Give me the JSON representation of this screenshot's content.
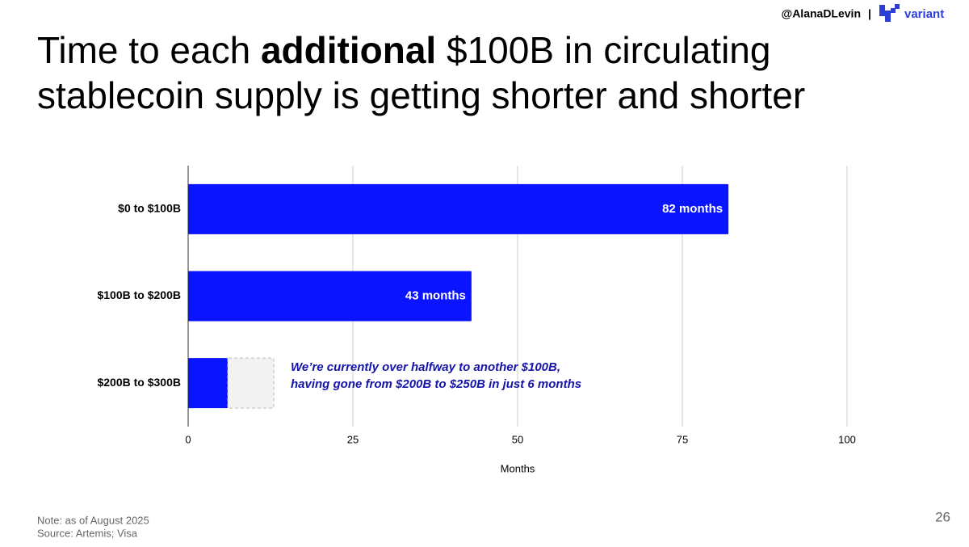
{
  "header": {
    "handle": "@AlanaDLevin",
    "separator": "|",
    "brand": "variant"
  },
  "chart_data": {
    "type": "hbar",
    "title": [
      "Time to each ",
      "additional",
      " $100B in circulating",
      "stablecoin supply is getting shorter and shorter"
    ],
    "categories": [
      "$0 to $100B",
      "$100B to $200B",
      "$200B to $300B"
    ],
    "series": [
      {
        "color": "#0a14ff",
        "values": [
          82,
          43,
          6
        ],
        "value_labels": [
          "82 months",
          "43 months",
          null
        ]
      },
      {
        "color": "#f2f2f2",
        "dashed": true,
        "values": [
          null,
          null,
          7
        ]
      }
    ],
    "annotation": [
      "We’re currently over halfway to another $100B,",
      "having gone from $200B to $250B in just 6 months"
    ],
    "annotation_color": "#1414a8",
    "xlabel": "Months",
    "xlim": [
      0,
      100
    ],
    "xticks": [
      0,
      25,
      50,
      75,
      100
    ],
    "grid": true
  },
  "footer": {
    "note": "Note: as of August 2025",
    "source": "Source: Artemis; Visa",
    "page": "26"
  }
}
